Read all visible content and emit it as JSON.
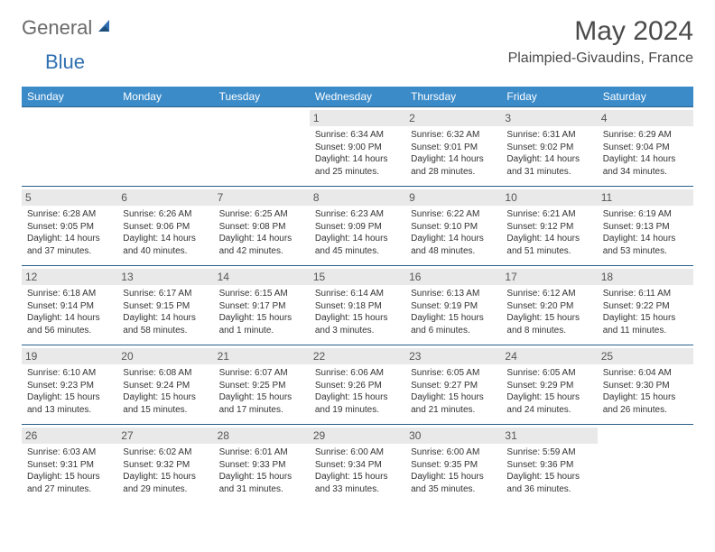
{
  "brand": {
    "text1": "General",
    "text2": "Blue"
  },
  "title": "May 2024",
  "location": "Plaimpied-Givaudins, France",
  "colors": {
    "header_bg": "#3b8bc9",
    "header_text": "#ffffff",
    "row_border": "#2a5f8a",
    "daynum_bg": "#e9e9e9",
    "logo_gray": "#6a6a6a",
    "logo_blue": "#2f6fb0"
  },
  "days_of_week": [
    "Sunday",
    "Monday",
    "Tuesday",
    "Wednesday",
    "Thursday",
    "Friday",
    "Saturday"
  ],
  "weeks": [
    [
      {
        "n": "",
        "l1": "",
        "l2": "",
        "l3": ""
      },
      {
        "n": "",
        "l1": "",
        "l2": "",
        "l3": ""
      },
      {
        "n": "",
        "l1": "",
        "l2": "",
        "l3": ""
      },
      {
        "n": "1",
        "l1": "Sunrise: 6:34 AM",
        "l2": "Sunset: 9:00 PM",
        "l3": "Daylight: 14 hours and 25 minutes."
      },
      {
        "n": "2",
        "l1": "Sunrise: 6:32 AM",
        "l2": "Sunset: 9:01 PM",
        "l3": "Daylight: 14 hours and 28 minutes."
      },
      {
        "n": "3",
        "l1": "Sunrise: 6:31 AM",
        "l2": "Sunset: 9:02 PM",
        "l3": "Daylight: 14 hours and 31 minutes."
      },
      {
        "n": "4",
        "l1": "Sunrise: 6:29 AM",
        "l2": "Sunset: 9:04 PM",
        "l3": "Daylight: 14 hours and 34 minutes."
      }
    ],
    [
      {
        "n": "5",
        "l1": "Sunrise: 6:28 AM",
        "l2": "Sunset: 9:05 PM",
        "l3": "Daylight: 14 hours and 37 minutes."
      },
      {
        "n": "6",
        "l1": "Sunrise: 6:26 AM",
        "l2": "Sunset: 9:06 PM",
        "l3": "Daylight: 14 hours and 40 minutes."
      },
      {
        "n": "7",
        "l1": "Sunrise: 6:25 AM",
        "l2": "Sunset: 9:08 PM",
        "l3": "Daylight: 14 hours and 42 minutes."
      },
      {
        "n": "8",
        "l1": "Sunrise: 6:23 AM",
        "l2": "Sunset: 9:09 PM",
        "l3": "Daylight: 14 hours and 45 minutes."
      },
      {
        "n": "9",
        "l1": "Sunrise: 6:22 AM",
        "l2": "Sunset: 9:10 PM",
        "l3": "Daylight: 14 hours and 48 minutes."
      },
      {
        "n": "10",
        "l1": "Sunrise: 6:21 AM",
        "l2": "Sunset: 9:12 PM",
        "l3": "Daylight: 14 hours and 51 minutes."
      },
      {
        "n": "11",
        "l1": "Sunrise: 6:19 AM",
        "l2": "Sunset: 9:13 PM",
        "l3": "Daylight: 14 hours and 53 minutes."
      }
    ],
    [
      {
        "n": "12",
        "l1": "Sunrise: 6:18 AM",
        "l2": "Sunset: 9:14 PM",
        "l3": "Daylight: 14 hours and 56 minutes."
      },
      {
        "n": "13",
        "l1": "Sunrise: 6:17 AM",
        "l2": "Sunset: 9:15 PM",
        "l3": "Daylight: 14 hours and 58 minutes."
      },
      {
        "n": "14",
        "l1": "Sunrise: 6:15 AM",
        "l2": "Sunset: 9:17 PM",
        "l3": "Daylight: 15 hours and 1 minute."
      },
      {
        "n": "15",
        "l1": "Sunrise: 6:14 AM",
        "l2": "Sunset: 9:18 PM",
        "l3": "Daylight: 15 hours and 3 minutes."
      },
      {
        "n": "16",
        "l1": "Sunrise: 6:13 AM",
        "l2": "Sunset: 9:19 PM",
        "l3": "Daylight: 15 hours and 6 minutes."
      },
      {
        "n": "17",
        "l1": "Sunrise: 6:12 AM",
        "l2": "Sunset: 9:20 PM",
        "l3": "Daylight: 15 hours and 8 minutes."
      },
      {
        "n": "18",
        "l1": "Sunrise: 6:11 AM",
        "l2": "Sunset: 9:22 PM",
        "l3": "Daylight: 15 hours and 11 minutes."
      }
    ],
    [
      {
        "n": "19",
        "l1": "Sunrise: 6:10 AM",
        "l2": "Sunset: 9:23 PM",
        "l3": "Daylight: 15 hours and 13 minutes."
      },
      {
        "n": "20",
        "l1": "Sunrise: 6:08 AM",
        "l2": "Sunset: 9:24 PM",
        "l3": "Daylight: 15 hours and 15 minutes."
      },
      {
        "n": "21",
        "l1": "Sunrise: 6:07 AM",
        "l2": "Sunset: 9:25 PM",
        "l3": "Daylight: 15 hours and 17 minutes."
      },
      {
        "n": "22",
        "l1": "Sunrise: 6:06 AM",
        "l2": "Sunset: 9:26 PM",
        "l3": "Daylight: 15 hours and 19 minutes."
      },
      {
        "n": "23",
        "l1": "Sunrise: 6:05 AM",
        "l2": "Sunset: 9:27 PM",
        "l3": "Daylight: 15 hours and 21 minutes."
      },
      {
        "n": "24",
        "l1": "Sunrise: 6:05 AM",
        "l2": "Sunset: 9:29 PM",
        "l3": "Daylight: 15 hours and 24 minutes."
      },
      {
        "n": "25",
        "l1": "Sunrise: 6:04 AM",
        "l2": "Sunset: 9:30 PM",
        "l3": "Daylight: 15 hours and 26 minutes."
      }
    ],
    [
      {
        "n": "26",
        "l1": "Sunrise: 6:03 AM",
        "l2": "Sunset: 9:31 PM",
        "l3": "Daylight: 15 hours and 27 minutes."
      },
      {
        "n": "27",
        "l1": "Sunrise: 6:02 AM",
        "l2": "Sunset: 9:32 PM",
        "l3": "Daylight: 15 hours and 29 minutes."
      },
      {
        "n": "28",
        "l1": "Sunrise: 6:01 AM",
        "l2": "Sunset: 9:33 PM",
        "l3": "Daylight: 15 hours and 31 minutes."
      },
      {
        "n": "29",
        "l1": "Sunrise: 6:00 AM",
        "l2": "Sunset: 9:34 PM",
        "l3": "Daylight: 15 hours and 33 minutes."
      },
      {
        "n": "30",
        "l1": "Sunrise: 6:00 AM",
        "l2": "Sunset: 9:35 PM",
        "l3": "Daylight: 15 hours and 35 minutes."
      },
      {
        "n": "31",
        "l1": "Sunrise: 5:59 AM",
        "l2": "Sunset: 9:36 PM",
        "l3": "Daylight: 15 hours and 36 minutes."
      },
      {
        "n": "",
        "l1": "",
        "l2": "",
        "l3": ""
      }
    ]
  ]
}
